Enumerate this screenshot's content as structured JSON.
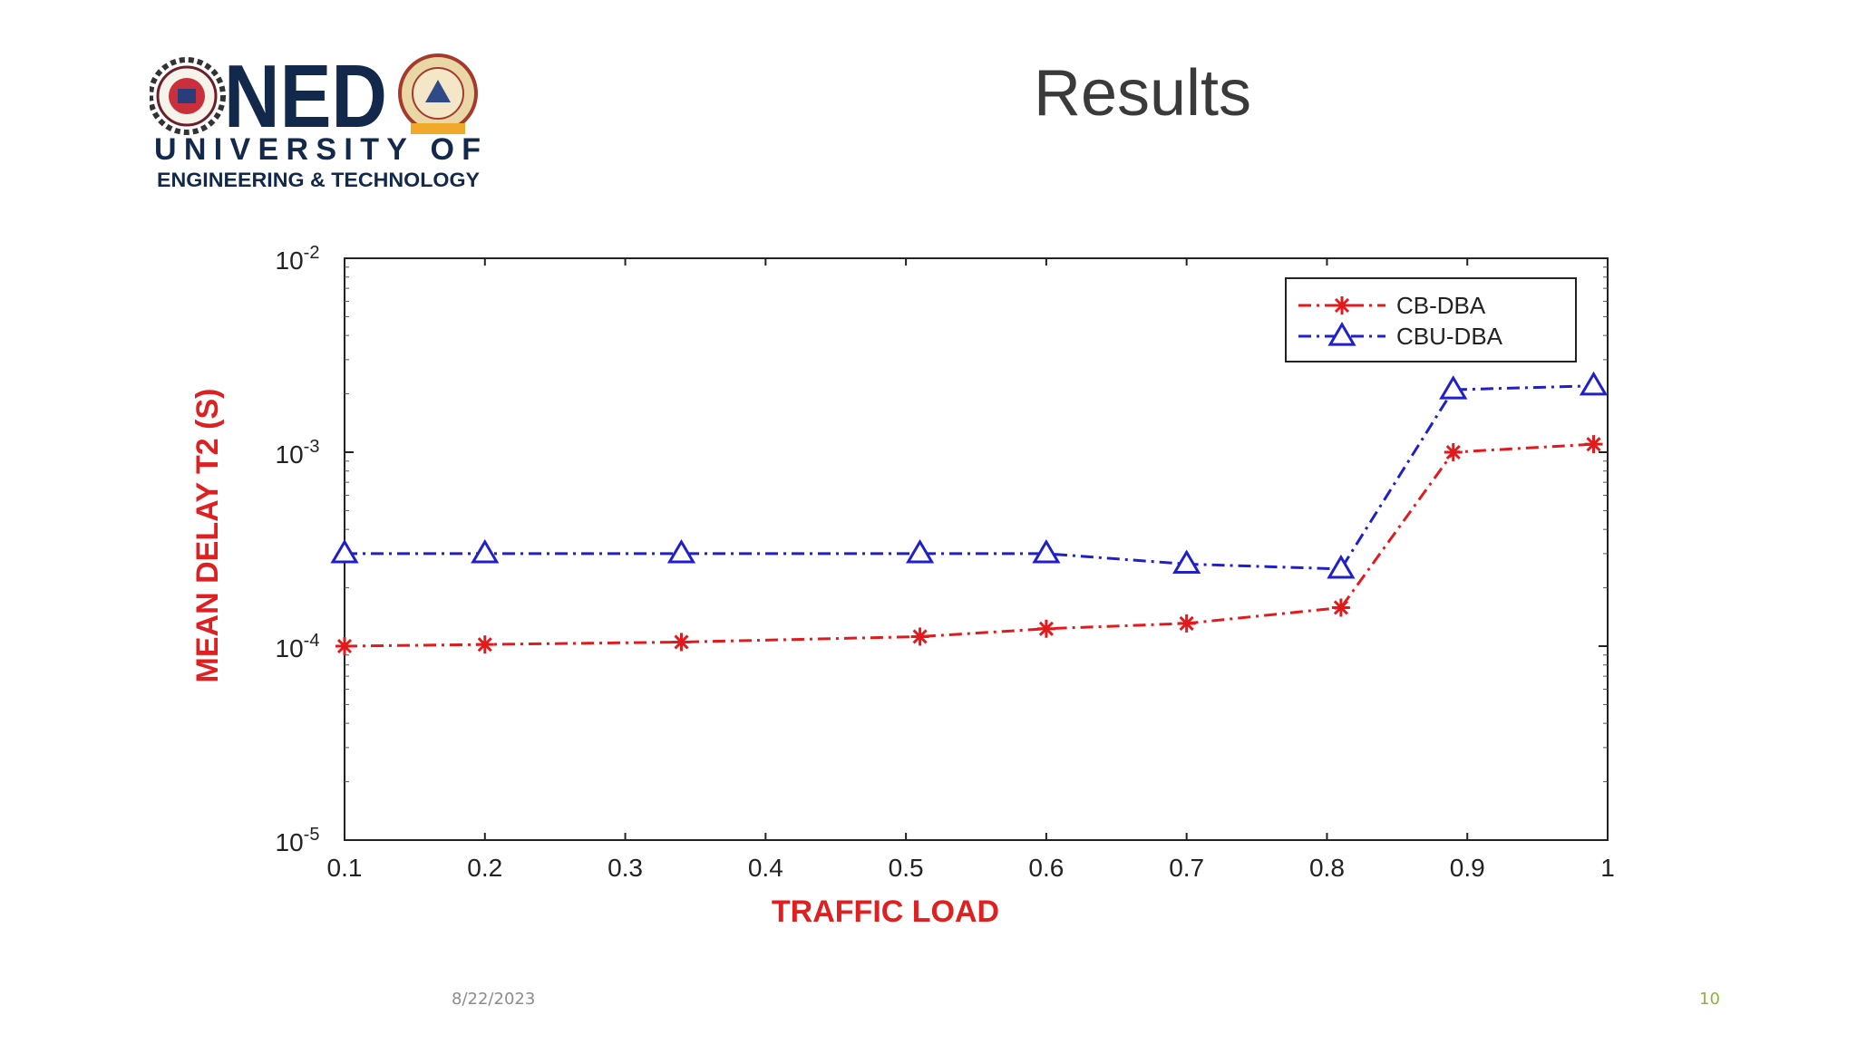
{
  "slide": {
    "title": "Results",
    "date": "8/22/2023",
    "page_number": "10"
  },
  "logo": {
    "wordmark": "NED",
    "line1": "UNIVERSITY OF",
    "line2": "ENGINEERING & TECHNOLOGY"
  },
  "colors": {
    "cb_dba": "#e31a1c",
    "cbu_dba": "#1f1fcc",
    "axis_title": "#e02020",
    "logo_text": "#13294b"
  },
  "chart_data": {
    "type": "line",
    "x": [
      0.1,
      0.2,
      0.34,
      0.51,
      0.6,
      0.7,
      0.81,
      0.89,
      0.99
    ],
    "series": [
      {
        "name": "CB-DBA",
        "marker": "asterisk",
        "values": [
          0.0001,
          0.000102,
          0.000105,
          0.000112,
          0.000123,
          0.000131,
          0.000158,
          0.001,
          0.0011
        ]
      },
      {
        "name": "CBU-DBA",
        "marker": "triangle",
        "values": [
          0.0003,
          0.0003,
          0.0003,
          0.0003,
          0.0003,
          0.000265,
          0.00025,
          0.0021,
          0.0022
        ]
      }
    ],
    "xlabel": "TRAFFIC LOAD",
    "ylabel": "MEAN DELAY T2 (S)",
    "xlim": [
      0.1,
      1
    ],
    "ylim": [
      1e-05,
      0.01
    ],
    "yscale": "log",
    "x_ticks": [
      "0.1",
      "0.2",
      "0.3",
      "0.4",
      "0.5",
      "0.6",
      "0.7",
      "0.8",
      "0.9",
      "1"
    ],
    "y_ticks": [
      {
        "base": "10",
        "exp": "-5"
      },
      {
        "base": "10",
        "exp": "-4"
      },
      {
        "base": "10",
        "exp": "-3"
      },
      {
        "base": "10",
        "exp": "-2"
      }
    ],
    "legend_position": "top-right",
    "grid": false
  }
}
